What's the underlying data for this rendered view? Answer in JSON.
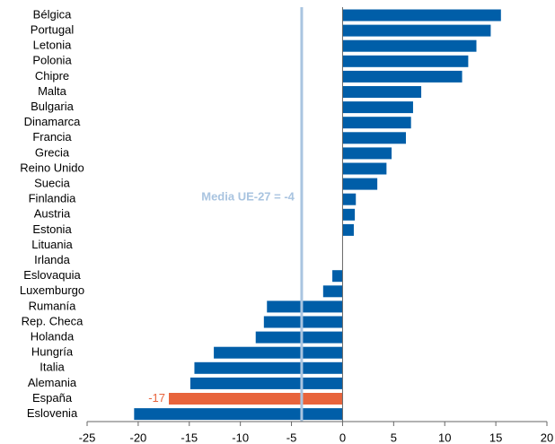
{
  "chart_data": {
    "type": "hbar",
    "categories": [
      "Bélgica",
      "Portugal",
      "Letonia",
      "Polonia",
      "Chipre",
      "Malta",
      "Bulgaria",
      "Dinamarca",
      "Francia",
      "Grecia",
      "Reino Unido",
      "Suecia",
      "Finlandia",
      "Austria",
      "Estonia",
      "Lituania",
      "Irlanda",
      "Eslovaquia",
      "Luxemburgo",
      "Rumanía",
      "Rep. Checa",
      "Holanda",
      "Hungría",
      "Italia",
      "Alemania",
      "España",
      "Eslovenia"
    ],
    "values": [
      15.5,
      14.5,
      13.1,
      12.3,
      11.7,
      7.7,
      6.9,
      6.7,
      6.2,
      4.8,
      4.3,
      3.4,
      1.3,
      1.2,
      1.1,
      0,
      0,
      -1.0,
      -1.9,
      -7.4,
      -7.7,
      -8.5,
      -12.6,
      -14.5,
      -14.9,
      -17,
      -20.4
    ],
    "value_labels": [
      null,
      null,
      null,
      null,
      null,
      null,
      null,
      null,
      null,
      null,
      null,
      null,
      null,
      null,
      null,
      null,
      null,
      null,
      null,
      null,
      null,
      null,
      null,
      null,
      null,
      "-17",
      null
    ],
    "colors": [
      "#005ea8",
      "#005ea8",
      "#005ea8",
      "#005ea8",
      "#005ea8",
      "#005ea8",
      "#005ea8",
      "#005ea8",
      "#005ea8",
      "#005ea8",
      "#005ea8",
      "#005ea8",
      "#005ea8",
      "#005ea8",
      "#005ea8",
      "#005ea8",
      "#005ea8",
      "#005ea8",
      "#005ea8",
      "#005ea8",
      "#005ea8",
      "#005ea8",
      "#005ea8",
      "#005ea8",
      "#005ea8",
      "#e8643c",
      "#005ea8"
    ],
    "mean_line": {
      "value": -4,
      "label": "Media UE-27 = -4",
      "color": "#a9c4e0"
    },
    "xlim": [
      -25,
      20
    ],
    "xticks": [
      -25,
      -20,
      -15,
      -10,
      -5,
      0,
      5,
      10,
      15,
      20
    ]
  }
}
